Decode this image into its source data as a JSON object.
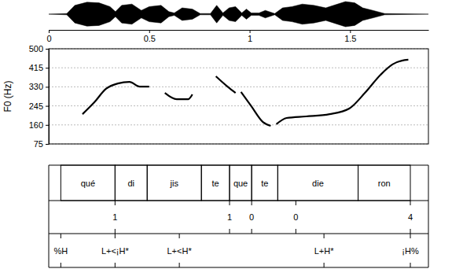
{
  "chart_data": {
    "type": "line",
    "ylabel": "F0 (Hz)",
    "color": "#000000",
    "grid": true,
    "xlim": [
      0,
      1.89
    ],
    "xticks": [
      0,
      0.5,
      1,
      1.5
    ],
    "ylim": [
      75,
      500
    ],
    "yticks": [
      75,
      160,
      245,
      330,
      415,
      500
    ],
    "x": [
      0.168,
      0.227,
      0.285,
      0.344,
      0.402,
      0.453,
      0.5,
      null,
      0.578,
      0.637,
      0.695,
      0.715,
      null,
      0.832,
      0.89,
      0.93,
      null,
      0.957,
      1.008,
      1.066,
      1.105,
      null,
      1.133,
      1.184,
      1.281,
      1.398,
      1.496,
      1.574,
      1.652,
      1.711,
      1.758,
      1.79
    ],
    "values": [
      208,
      261,
      321,
      345,
      352,
      331,
      331,
      null,
      303,
      275,
      275,
      296,
      null,
      377,
      331,
      303,
      null,
      307,
      244,
      173,
      156,
      null,
      163,
      191,
      198,
      208,
      233,
      303,
      384,
      430,
      447,
      451
    ],
    "waveform": {
      "color": "#000000",
      "ylim": [
        -1,
        1
      ],
      "x": [
        0,
        0.09,
        0.13,
        0.19,
        0.25,
        0.305,
        0.332,
        0.363,
        0.414,
        0.461,
        0.5,
        0.559,
        0.598,
        0.625,
        0.664,
        0.715,
        0.754,
        0.805,
        0.836,
        0.867,
        0.898,
        0.93,
        0.961,
        0.984,
        1.008,
        1.047,
        1.078,
        1.125,
        1.164,
        1.211,
        1.262,
        1.32,
        1.379,
        1.418,
        1.477,
        1.523,
        1.563,
        1.613,
        1.672,
        1.89
      ],
      "values": [
        0,
        0.05,
        0.7,
        0.95,
        0.9,
        0.6,
        0.2,
        0.7,
        0.8,
        0.3,
        0.6,
        0.7,
        0.2,
        0.1,
        0.5,
        0.4,
        0.05,
        0.05,
        0.7,
        0.1,
        0.5,
        0.6,
        0.1,
        0.4,
        0.1,
        0.1,
        0.3,
        0.05,
        0.5,
        0.6,
        0.8,
        0.7,
        0.5,
        0.7,
        1.0,
        0.9,
        0.5,
        0.3,
        0.05,
        0
      ]
    },
    "tiers": [
      {
        "type": "interval",
        "intervals": [
          {
            "start": 0.06,
            "end": 0.33,
            "label": "qué"
          },
          {
            "start": 0.33,
            "end": 0.49,
            "label": "di"
          },
          {
            "start": 0.49,
            "end": 0.76,
            "label": "jis"
          },
          {
            "start": 0.76,
            "end": 0.9,
            "label": "te"
          },
          {
            "start": 0.9,
            "end": 1.01,
            "label": "que"
          },
          {
            "start": 1.01,
            "end": 1.14,
            "label": "te"
          },
          {
            "start": 1.14,
            "end": 1.54,
            "label": "die"
          },
          {
            "start": 1.54,
            "end": 1.8,
            "label": "ron"
          }
        ]
      },
      {
        "type": "point",
        "points": [
          {
            "time": 0.33,
            "label": "1"
          },
          {
            "time": 0.9,
            "label": "1"
          },
          {
            "time": 1.01,
            "label": "0"
          },
          {
            "time": 1.23,
            "label": "0"
          },
          {
            "time": 1.8,
            "label": "4"
          }
        ]
      },
      {
        "type": "point",
        "points": [
          {
            "time": 0.06,
            "label": "%H"
          },
          {
            "time": 0.33,
            "label": "L+<¡H*"
          },
          {
            "time": 0.65,
            "label": "L+<H*"
          },
          {
            "time": 1.37,
            "label": "L+H*"
          },
          {
            "time": 1.8,
            "label": "¡H%"
          }
        ]
      }
    ]
  }
}
